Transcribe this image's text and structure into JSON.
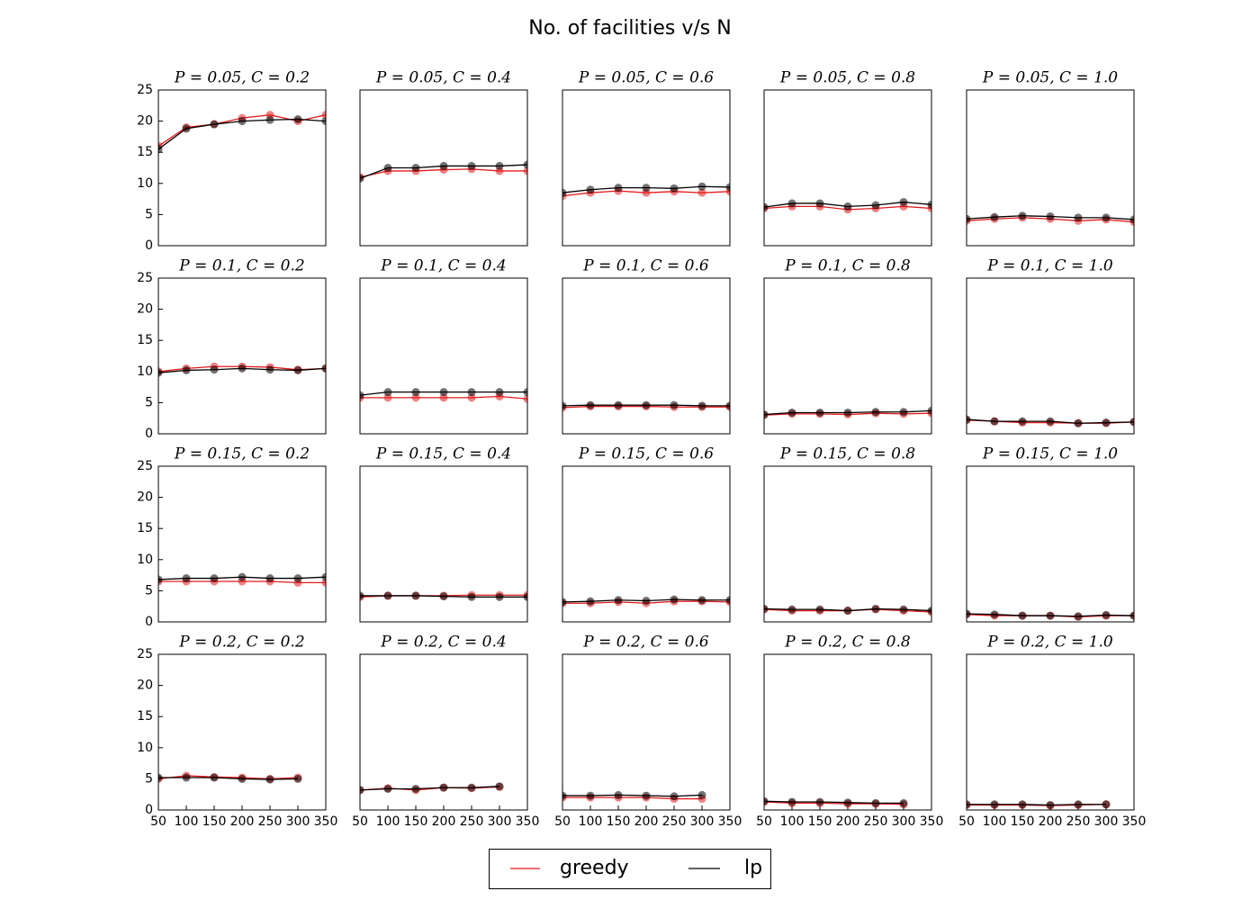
{
  "title": "No. of facilities v/s N",
  "chart_data": [
    {
      "type": "line",
      "title": "P = 0.05, C = 0.2",
      "x": [
        50,
        100,
        150,
        200,
        250,
        300,
        350
      ],
      "xlim": [
        50,
        350
      ],
      "ylim": [
        0,
        25
      ],
      "yticks": [
        0,
        5,
        10,
        15,
        20,
        25
      ],
      "series": [
        {
          "name": "greedy",
          "color": "#e31a1c",
          "values": [
            16,
            19,
            19.5,
            20.5,
            21,
            20,
            21
          ]
        },
        {
          "name": "lp",
          "color": "#000000",
          "values": [
            15.5,
            18.8,
            19.5,
            20,
            20.2,
            20.3,
            20
          ]
        }
      ]
    },
    {
      "type": "line",
      "title": "P = 0.05, C = 0.4",
      "x": [
        50,
        100,
        150,
        200,
        250,
        300,
        350
      ],
      "xlim": [
        50,
        350
      ],
      "ylim": [
        0,
        25
      ],
      "series": [
        {
          "name": "greedy",
          "color": "#e31a1c",
          "values": [
            11,
            12,
            12,
            12.2,
            12.3,
            12,
            12
          ]
        },
        {
          "name": "lp",
          "color": "#000000",
          "values": [
            10.8,
            12.5,
            12.5,
            12.8,
            12.8,
            12.8,
            13
          ]
        }
      ]
    },
    {
      "type": "line",
      "title": "P = 0.05, C = 0.6",
      "x": [
        50,
        100,
        150,
        200,
        250,
        300,
        350
      ],
      "xlim": [
        50,
        350
      ],
      "ylim": [
        0,
        25
      ],
      "series": [
        {
          "name": "greedy",
          "color": "#e31a1c",
          "values": [
            8,
            8.5,
            8.8,
            8.5,
            8.7,
            8.5,
            8.7
          ]
        },
        {
          "name": "lp",
          "color": "#000000",
          "values": [
            8.5,
            9,
            9.3,
            9.3,
            9.2,
            9.5,
            9.4
          ]
        }
      ]
    },
    {
      "type": "line",
      "title": "P = 0.05, C = 0.8",
      "x": [
        50,
        100,
        150,
        200,
        250,
        300,
        350
      ],
      "xlim": [
        50,
        350
      ],
      "ylim": [
        0,
        25
      ],
      "series": [
        {
          "name": "greedy",
          "color": "#e31a1c",
          "values": [
            6,
            6.3,
            6.3,
            5.8,
            6,
            6.3,
            6
          ]
        },
        {
          "name": "lp",
          "color": "#000000",
          "values": [
            6.2,
            6.8,
            6.8,
            6.3,
            6.5,
            7,
            6.6
          ]
        }
      ]
    },
    {
      "type": "line",
      "title": "P = 0.05, C = 1.0",
      "x": [
        50,
        100,
        150,
        200,
        250,
        300,
        350
      ],
      "xlim": [
        50,
        350
      ],
      "ylim": [
        0,
        25
      ],
      "series": [
        {
          "name": "greedy",
          "color": "#e31a1c",
          "values": [
            4,
            4.3,
            4.5,
            4.3,
            4,
            4.2,
            3.8
          ]
        },
        {
          "name": "lp",
          "color": "#000000",
          "values": [
            4.3,
            4.6,
            4.8,
            4.7,
            4.5,
            4.5,
            4.2
          ]
        }
      ]
    },
    {
      "type": "line",
      "title": "P = 0.1, C = 0.2",
      "x": [
        50,
        100,
        150,
        200,
        250,
        300,
        350
      ],
      "xlim": [
        50,
        350
      ],
      "ylim": [
        0,
        25
      ],
      "yticks": [
        0,
        5,
        10,
        15,
        20,
        25
      ],
      "series": [
        {
          "name": "greedy",
          "color": "#e31a1c",
          "values": [
            10,
            10.5,
            10.8,
            10.8,
            10.7,
            10.3,
            10.5
          ]
        },
        {
          "name": "lp",
          "color": "#000000",
          "values": [
            9.8,
            10.2,
            10.3,
            10.5,
            10.3,
            10.2,
            10.5
          ]
        }
      ]
    },
    {
      "type": "line",
      "title": "P = 0.1, C = 0.4",
      "x": [
        50,
        100,
        150,
        200,
        250,
        300,
        350
      ],
      "xlim": [
        50,
        350
      ],
      "ylim": [
        0,
        25
      ],
      "series": [
        {
          "name": "greedy",
          "color": "#e31a1c",
          "values": [
            5.8,
            5.8,
            5.8,
            5.8,
            5.8,
            6,
            5.6
          ]
        },
        {
          "name": "lp",
          "color": "#000000",
          "values": [
            6.2,
            6.7,
            6.7,
            6.7,
            6.7,
            6.7,
            6.7
          ]
        }
      ]
    },
    {
      "type": "line",
      "title": "P = 0.1, C = 0.6",
      "x": [
        50,
        100,
        150,
        200,
        250,
        300,
        350
      ],
      "xlim": [
        50,
        350
      ],
      "ylim": [
        0,
        25
      ],
      "series": [
        {
          "name": "greedy",
          "color": "#e31a1c",
          "values": [
            4.2,
            4.4,
            4.4,
            4.4,
            4.3,
            4.3,
            4.3
          ]
        },
        {
          "name": "lp",
          "color": "#000000",
          "values": [
            4.5,
            4.6,
            4.6,
            4.6,
            4.6,
            4.5,
            4.5
          ]
        }
      ]
    },
    {
      "type": "line",
      "title": "P = 0.1, C = 0.8",
      "x": [
        50,
        100,
        150,
        200,
        250,
        300,
        350
      ],
      "xlim": [
        50,
        350
      ],
      "ylim": [
        0,
        25
      ],
      "series": [
        {
          "name": "greedy",
          "color": "#e31a1c",
          "values": [
            3,
            3.2,
            3.2,
            3.1,
            3.3,
            3.2,
            3.3
          ]
        },
        {
          "name": "lp",
          "color": "#000000",
          "values": [
            3.1,
            3.4,
            3.4,
            3.4,
            3.5,
            3.5,
            3.7
          ]
        }
      ]
    },
    {
      "type": "line",
      "title": "P = 0.1, C = 1.0",
      "x": [
        50,
        100,
        150,
        200,
        250,
        300,
        350
      ],
      "xlim": [
        50,
        350
      ],
      "ylim": [
        0,
        25
      ],
      "series": [
        {
          "name": "greedy",
          "color": "#e31a1c",
          "values": [
            2.2,
            2,
            1.8,
            1.8,
            1.7,
            1.7,
            1.9
          ]
        },
        {
          "name": "lp",
          "color": "#000000",
          "values": [
            2.3,
            2,
            2,
            2,
            1.7,
            1.8,
            1.9
          ]
        }
      ]
    },
    {
      "type": "line",
      "title": "P = 0.15, C = 0.2",
      "x": [
        50,
        100,
        150,
        200,
        250,
        300,
        350
      ],
      "xlim": [
        50,
        350
      ],
      "ylim": [
        0,
        25
      ],
      "yticks": [
        0,
        5,
        10,
        15,
        20,
        25
      ],
      "series": [
        {
          "name": "greedy",
          "color": "#e31a1c",
          "values": [
            6.5,
            6.5,
            6.5,
            6.5,
            6.5,
            6.3,
            6.3
          ]
        },
        {
          "name": "lp",
          "color": "#000000",
          "values": [
            6.8,
            7,
            7,
            7.2,
            7,
            7,
            7.2
          ]
        }
      ]
    },
    {
      "type": "line",
      "title": "P = 0.15, C = 0.4",
      "x": [
        50,
        100,
        150,
        200,
        250,
        300,
        350
      ],
      "xlim": [
        50,
        350
      ],
      "ylim": [
        0,
        25
      ],
      "series": [
        {
          "name": "greedy",
          "color": "#e31a1c",
          "values": [
            4,
            4.2,
            4.2,
            4.2,
            4.3,
            4.3,
            4.3
          ]
        },
        {
          "name": "lp",
          "color": "#000000",
          "values": [
            4.2,
            4.2,
            4.2,
            4.1,
            4,
            4,
            4
          ]
        }
      ]
    },
    {
      "type": "line",
      "title": "P = 0.15, C = 0.6",
      "x": [
        50,
        100,
        150,
        200,
        250,
        300,
        350
      ],
      "xlim": [
        50,
        350
      ],
      "ylim": [
        0,
        25
      ],
      "series": [
        {
          "name": "greedy",
          "color": "#e31a1c",
          "values": [
            3,
            3,
            3.2,
            3,
            3.3,
            3.3,
            3.2
          ]
        },
        {
          "name": "lp",
          "color": "#000000",
          "values": [
            3.2,
            3.3,
            3.5,
            3.4,
            3.6,
            3.5,
            3.5
          ]
        }
      ]
    },
    {
      "type": "line",
      "title": "P = 0.15, C = 0.8",
      "x": [
        50,
        100,
        150,
        200,
        250,
        300,
        350
      ],
      "xlim": [
        50,
        350
      ],
      "ylim": [
        0,
        25
      ],
      "series": [
        {
          "name": "greedy",
          "color": "#e31a1c",
          "values": [
            2,
            1.8,
            1.8,
            1.8,
            2,
            1.8,
            1.6
          ]
        },
        {
          "name": "lp",
          "color": "#000000",
          "values": [
            2.1,
            2,
            2,
            1.8,
            2.1,
            2,
            1.8
          ]
        }
      ]
    },
    {
      "type": "line",
      "title": "P = 0.15, C = 1.0",
      "x": [
        50,
        100,
        150,
        200,
        250,
        300,
        350
      ],
      "xlim": [
        50,
        350
      ],
      "ylim": [
        0,
        25
      ],
      "series": [
        {
          "name": "greedy",
          "color": "#e31a1c",
          "values": [
            1.2,
            1,
            1,
            1,
            0.8,
            1,
            1
          ]
        },
        {
          "name": "lp",
          "color": "#000000",
          "values": [
            1.3,
            1.2,
            1,
            1,
            0.9,
            1.1,
            1
          ]
        }
      ]
    },
    {
      "type": "line",
      "title": "P = 0.2, C = 0.2",
      "x": [
        50,
        100,
        150,
        200,
        250,
        300
      ],
      "xlim": [
        50,
        350
      ],
      "ylim": [
        0,
        25
      ],
      "yticks": [
        0,
        5,
        10,
        15,
        20,
        25
      ],
      "xticks": [
        50,
        100,
        150,
        200,
        250,
        300,
        350
      ],
      "series": [
        {
          "name": "greedy",
          "color": "#e31a1c",
          "values": [
            5,
            5.5,
            5.3,
            5.2,
            5,
            5.2
          ]
        },
        {
          "name": "lp",
          "color": "#000000",
          "values": [
            5.2,
            5.2,
            5.2,
            5,
            4.9,
            5
          ]
        }
      ]
    },
    {
      "type": "line",
      "title": "P = 0.2, C = 0.4",
      "x": [
        50,
        100,
        150,
        200,
        250,
        300
      ],
      "xlim": [
        50,
        350
      ],
      "ylim": [
        0,
        25
      ],
      "xticks": [
        50,
        100,
        150,
        200,
        250,
        300,
        350
      ],
      "series": [
        {
          "name": "greedy",
          "color": "#e31a1c",
          "values": [
            3.2,
            3.5,
            3.2,
            3.6,
            3.5,
            3.7
          ]
        },
        {
          "name": "lp",
          "color": "#000000",
          "values": [
            3.2,
            3.4,
            3.4,
            3.6,
            3.6,
            3.8
          ]
        }
      ]
    },
    {
      "type": "line",
      "title": "P = 0.2, C = 0.6",
      "x": [
        50,
        100,
        150,
        200,
        250,
        300
      ],
      "xlim": [
        50,
        350
      ],
      "ylim": [
        0,
        25
      ],
      "xticks": [
        50,
        100,
        150,
        200,
        250,
        300,
        350
      ],
      "series": [
        {
          "name": "greedy",
          "color": "#e31a1c",
          "values": [
            2,
            2,
            2,
            2,
            1.8,
            1.8
          ]
        },
        {
          "name": "lp",
          "color": "#000000",
          "values": [
            2.3,
            2.3,
            2.4,
            2.3,
            2.2,
            2.4
          ]
        }
      ]
    },
    {
      "type": "line",
      "title": "P = 0.2, C = 0.8",
      "x": [
        50,
        100,
        150,
        200,
        250,
        300
      ],
      "xlim": [
        50,
        350
      ],
      "ylim": [
        0,
        25
      ],
      "xticks": [
        50,
        100,
        150,
        200,
        250,
        300,
        350
      ],
      "series": [
        {
          "name": "greedy",
          "color": "#e31a1c",
          "values": [
            1.3,
            1.1,
            1.1,
            1,
            1,
            0.9
          ]
        },
        {
          "name": "lp",
          "color": "#000000",
          "values": [
            1.4,
            1.3,
            1.3,
            1.2,
            1.1,
            1.1
          ]
        }
      ]
    },
    {
      "type": "line",
      "title": "P = 0.2, C = 1.0",
      "x": [
        50,
        100,
        150,
        200,
        250,
        300
      ],
      "xlim": [
        50,
        350
      ],
      "ylim": [
        0,
        25
      ],
      "xticks": [
        50,
        100,
        150,
        200,
        250,
        300,
        350
      ],
      "series": [
        {
          "name": "greedy",
          "color": "#e31a1c",
          "values": [
            0.8,
            0.8,
            0.8,
            0.7,
            0.8,
            0.9
          ]
        },
        {
          "name": "lp",
          "color": "#000000",
          "values": [
            0.9,
            0.9,
            0.9,
            0.8,
            0.9,
            0.9
          ]
        }
      ]
    }
  ]
}
